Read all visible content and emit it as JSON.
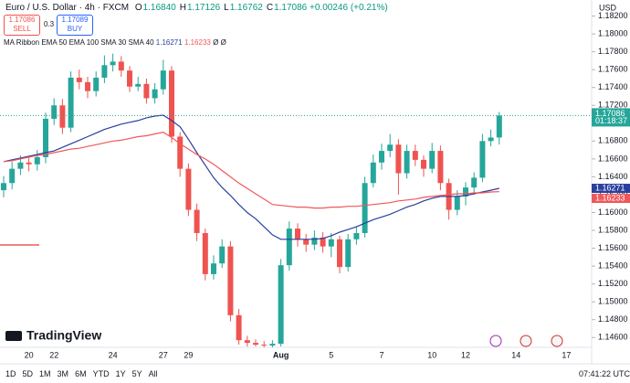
{
  "header": {
    "symbol": "Euro / U.S. Dollar · 4h · FXCM",
    "quote": [
      {
        "key": "O",
        "value": 1.1684,
        "label": "1.16840"
      },
      {
        "key": "H",
        "value": 1.17126,
        "label": "1.17126"
      },
      {
        "key": "L",
        "value": 1.16762,
        "label": "1.16762"
      },
      {
        "key": "C",
        "value": 1.17086,
        "label": "1.17086"
      }
    ],
    "change": {
      "value": 0.00246,
      "label": "+0.00246"
    },
    "change_pct": {
      "value": 0.21,
      "label": "(+0.21%)"
    },
    "sell": {
      "price": 1.17086,
      "label": "SELL"
    },
    "spread": 0.3,
    "buy": {
      "price": 1.17089,
      "label": "BUY"
    },
    "indicator": "MA Ribbon EMA 50 EMA 100 SMA 30 SMA 40",
    "indicator_empty": [
      "Ø",
      "Ø"
    ],
    "logo": "TradingView"
  },
  "chart_data": {
    "type": "candlestick",
    "currency": "USD",
    "countdown": "01:18:37",
    "up_color": "#26a69a",
    "down_color": "#ef5350",
    "categories": [
      null,
      null,
      null,
      "20",
      null,
      null,
      "22",
      null,
      null,
      null,
      null,
      null,
      null,
      "24",
      null,
      null,
      null,
      null,
      null,
      "27",
      null,
      null,
      "29",
      null,
      null,
      null,
      null,
      null,
      null,
      null,
      null,
      null,
      null,
      "Aug",
      null,
      null,
      null,
      null,
      null,
      "5",
      null,
      null,
      null,
      null,
      null,
      "7",
      null,
      null,
      null,
      null,
      null,
      "10",
      null,
      null,
      null,
      "12",
      null,
      null,
      null,
      null,
      null,
      "14",
      null,
      null,
      null,
      null,
      null,
      "17"
    ],
    "open": [
      1.1625,
      1.1633,
      1.1649,
      1.1656,
      1.1654,
      1.1662,
      1.1705,
      1.172,
      1.1695,
      1.1751,
      1.1746,
      1.1736,
      1.1751,
      1.1765,
      1.1769,
      1.1759,
      1.1741,
      1.1744,
      1.1728,
      1.1738,
      1.1759,
      1.1685,
      1.1649,
      1.1603,
      1.1577,
      1.1531,
      1.1543,
      1.1562,
      1.1485,
      1.1457,
      1.1454,
      1.1452,
      1.1451,
      1.1453,
      1.1541,
      1.1582,
      1.157,
      1.1564,
      1.1572,
      1.1562,
      1.157,
      1.1539,
      1.157,
      1.1577,
      1.1633,
      1.1656,
      1.1669,
      1.1676,
      1.1644,
      1.1669,
      1.1659,
      1.1649,
      1.1669,
      1.1633,
      1.1603,
      1.1618,
      1.1628,
      1.1639,
      1.168,
      1.1684,
      null,
      null,
      null,
      null,
      null,
      null,
      null,
      null
    ],
    "high": [
      1.1641,
      1.1657,
      1.1664,
      1.1663,
      1.167,
      1.1712,
      1.1728,
      1.1727,
      1.1758,
      1.176,
      1.1752,
      1.1758,
      1.1776,
      1.1778,
      1.1775,
      1.1764,
      1.1752,
      1.175,
      1.1745,
      1.1771,
      1.1764,
      1.169,
      1.1655,
      1.161,
      1.1582,
      1.1552,
      1.157,
      1.1568,
      1.1492,
      1.1462,
      1.1458,
      1.1456,
      1.1457,
      1.1548,
      1.159,
      1.1588,
      1.1576,
      1.158,
      1.1578,
      1.1577,
      1.1574,
      1.1576,
      1.1584,
      1.164,
      1.1665,
      1.1677,
      1.1688,
      1.1682,
      1.1676,
      1.1676,
      1.1664,
      1.1678,
      1.1675,
      1.1638,
      1.1625,
      1.1634,
      1.1645,
      1.1688,
      1.1693,
      1.17126,
      null,
      null,
      null,
      null,
      null,
      null,
      null,
      null
    ],
    "low": [
      1.1617,
      1.1626,
      1.1642,
      1.1646,
      1.1647,
      1.1655,
      1.1698,
      1.1688,
      1.169,
      1.1738,
      1.1728,
      1.173,
      1.1745,
      1.1758,
      1.1752,
      1.1735,
      1.1736,
      1.1722,
      1.1722,
      1.1732,
      1.1678,
      1.164,
      1.1596,
      1.1568,
      1.1524,
      1.1525,
      1.1538,
      1.1478,
      1.1452,
      1.145,
      1.145,
      1.1449,
      1.1449,
      1.145,
      1.1535,
      1.1562,
      1.1556,
      1.1558,
      1.1555,
      1.155,
      1.1532,
      1.1534,
      1.1564,
      1.1572,
      1.1628,
      1.1648,
      1.1662,
      1.162,
      1.1638,
      1.1652,
      1.164,
      1.1644,
      1.1625,
      1.1592,
      1.1597,
      1.1608,
      1.162,
      1.1634,
      1.1674,
      1.16762,
      null,
      null,
      null,
      null,
      null,
      null,
      null,
      null
    ],
    "close": [
      1.1633,
      1.1649,
      1.1656,
      1.1654,
      1.1662,
      1.1705,
      1.172,
      1.1695,
      1.1751,
      1.1746,
      1.1736,
      1.1751,
      1.1765,
      1.1769,
      1.1759,
      1.1741,
      1.1744,
      1.1728,
      1.1738,
      1.1759,
      1.1685,
      1.1649,
      1.1603,
      1.1577,
      1.1531,
      1.1543,
      1.1562,
      1.1485,
      1.1457,
      1.1454,
      1.1452,
      1.1451,
      1.1453,
      1.1541,
      1.1582,
      1.157,
      1.1564,
      1.1572,
      1.1562,
      1.157,
      1.1539,
      1.157,
      1.1577,
      1.1633,
      1.1656,
      1.1669,
      1.1676,
      1.1644,
      1.1669,
      1.1659,
      1.1649,
      1.1669,
      1.1633,
      1.1603,
      1.1618,
      1.1628,
      1.1639,
      1.168,
      1.1684,
      1.17086,
      null,
      null,
      null,
      null,
      null,
      null,
      null,
      null
    ],
    "series": [
      {
        "color": "#2a3f9d",
        "values": [
          1.1657,
          1.1659,
          1.1661,
          1.1663,
          1.1665,
          1.1667,
          1.1669,
          1.1673,
          1.1677,
          1.1681,
          1.1685,
          1.1689,
          1.1693,
          1.1696,
          1.1699,
          1.1701,
          1.1703,
          1.1706,
          1.1708,
          1.1709,
          1.1703,
          1.1696,
          1.1682,
          1.1667,
          1.1653,
          1.1639,
          1.1628,
          1.1619,
          1.1609,
          1.16,
          1.1593,
          1.1584,
          1.1575,
          1.157,
          1.157,
          1.157,
          1.157,
          1.157,
          1.1571,
          1.1574,
          1.1578,
          1.1581,
          1.1584,
          1.1588,
          1.1592,
          1.1595,
          1.1598,
          1.1602,
          1.1606,
          1.1609,
          1.1613,
          1.1616,
          1.1618,
          1.1618,
          1.1618,
          1.1619,
          1.1621,
          1.1623,
          1.1625,
          1.16271,
          null,
          null,
          null,
          null,
          null,
          null,
          null,
          null
        ]
      },
      {
        "color": "#f0575a",
        "values": [
          1.1657,
          1.1658,
          1.166,
          1.1662,
          1.1664,
          1.1665,
          1.1667,
          1.1669,
          1.1671,
          1.1672,
          1.1674,
          1.1676,
          1.1678,
          1.168,
          1.1681,
          1.1683,
          1.1685,
          1.1686,
          1.1688,
          1.169,
          1.1684,
          1.1677,
          1.1671,
          1.1665,
          1.166,
          1.1654,
          1.1647,
          1.164,
          1.1633,
          1.1627,
          1.1621,
          1.1615,
          1.1609,
          1.1608,
          1.1607,
          1.1606,
          1.1606,
          1.1605,
          1.1605,
          1.1606,
          1.1606,
          1.1607,
          1.1607,
          1.1608,
          1.1609,
          1.161,
          1.1611,
          1.1613,
          1.1614,
          1.1615,
          1.1617,
          1.1618,
          1.1619,
          1.162,
          1.1621,
          1.1621,
          1.1622,
          1.1622,
          1.1623,
          1.16233,
          null,
          null,
          null,
          null,
          null,
          null,
          null,
          null
        ]
      }
    ],
    "ylim": [
      1.1449,
      1.1838
    ],
    "yticks": [
      {
        "value": 1.146,
        "label": "1.14600"
      },
      {
        "value": 1.148,
        "label": "1.14800"
      },
      {
        "value": 1.15,
        "label": "1.15000"
      },
      {
        "value": 1.152,
        "label": "1.15200"
      },
      {
        "value": 1.154,
        "label": "1.15400"
      },
      {
        "value": 1.156,
        "label": "1.15600"
      },
      {
        "value": 1.158,
        "label": "1.15800"
      },
      {
        "value": 1.16,
        "label": "1.16000"
      },
      {
        "value": 1.162,
        "label": "1.16200"
      },
      {
        "value": 1.164,
        "label": "1.16400"
      },
      {
        "value": 1.166,
        "label": "1.16600"
      },
      {
        "value": 1.168,
        "label": "1.16800"
      },
      {
        "value": 1.17,
        "label": "1.17000"
      },
      {
        "value": 1.172,
        "label": "1.17200"
      },
      {
        "value": 1.174,
        "label": "1.17400"
      },
      {
        "value": 1.176,
        "label": "1.17600"
      },
      {
        "value": 1.178,
        "label": "1.17800"
      },
      {
        "value": 1.18,
        "label": "1.18000"
      },
      {
        "value": 1.182,
        "label": "1.18200"
      }
    ]
  },
  "toolbar": {
    "ranges": [
      "1D",
      "5D",
      "1M",
      "3M",
      "6M",
      "YTD",
      "1Y",
      "5Y",
      "All"
    ],
    "time": "07:41:22 UTC"
  }
}
